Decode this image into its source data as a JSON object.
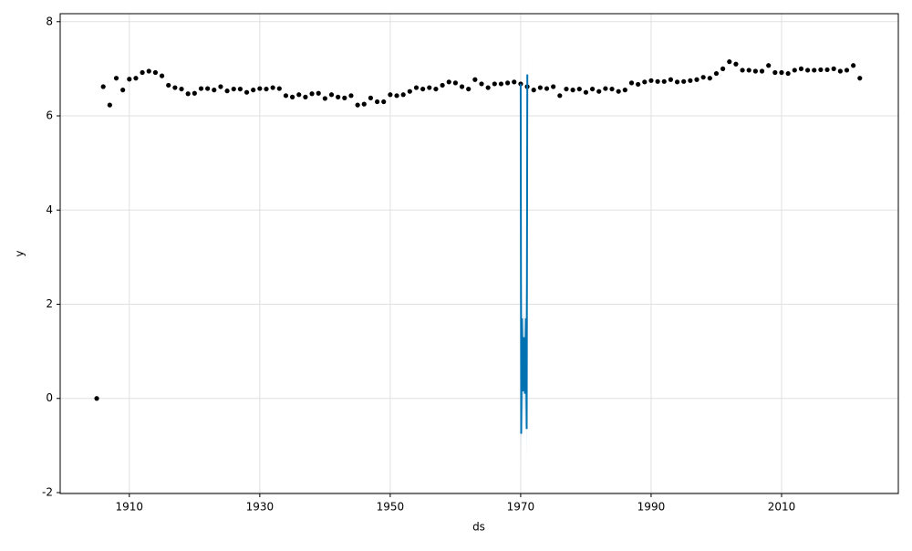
{
  "chart_data": {
    "type": "scatter",
    "x_label": "ds",
    "y_label": "y",
    "xlim": [
      1899.4,
      2027.9
    ],
    "ylim": [
      -2.02,
      8.17
    ],
    "xticks": [
      1910,
      1930,
      1950,
      1970,
      1990,
      2010
    ],
    "yticks": [
      -2,
      0,
      2,
      4,
      6,
      8
    ],
    "grid": true,
    "series": [
      {
        "type": "scatter",
        "color": "#000000",
        "x": [
          1905,
          1906,
          1907,
          1908,
          1909,
          1910,
          1911,
          1912,
          1913,
          1914,
          1915,
          1916,
          1917,
          1918,
          1919,
          1920,
          1921,
          1922,
          1923,
          1924,
          1925,
          1926,
          1927,
          1928,
          1929,
          1930,
          1931,
          1932,
          1933,
          1934,
          1935,
          1936,
          1937,
          1938,
          1939,
          1940,
          1941,
          1942,
          1943,
          1944,
          1945,
          1946,
          1947,
          1948,
          1949,
          1950,
          1951,
          1952,
          1953,
          1954,
          1955,
          1956,
          1957,
          1958,
          1959,
          1960,
          1961,
          1962,
          1963,
          1964,
          1965,
          1966,
          1967,
          1968,
          1969,
          1970,
          1971,
          1972,
          1973,
          1974,
          1975,
          1976,
          1977,
          1978,
          1979,
          1980,
          1981,
          1982,
          1983,
          1984,
          1985,
          1986,
          1987,
          1988,
          1989,
          1990,
          1991,
          1992,
          1993,
          1994,
          1995,
          1996,
          1997,
          1998,
          1999,
          2000,
          2001,
          2002,
          2003,
          2004,
          2005,
          2006,
          2007,
          2008,
          2009,
          2010,
          2011,
          2012,
          2013,
          2014,
          2015,
          2016,
          2017,
          2018,
          2019,
          2020,
          2021,
          2022
        ],
        "values": [
          0,
          6.62,
          6.23,
          6.8,
          6.55,
          6.78,
          6.8,
          6.92,
          6.95,
          6.92,
          6.85,
          6.65,
          6.6,
          6.57,
          6.47,
          6.48,
          6.58,
          6.58,
          6.55,
          6.62,
          6.53,
          6.57,
          6.57,
          6.5,
          6.55,
          6.58,
          6.57,
          6.6,
          6.58,
          6.43,
          6.4,
          6.45,
          6.4,
          6.47,
          6.48,
          6.37,
          6.45,
          6.4,
          6.38,
          6.43,
          6.23,
          6.25,
          6.38,
          6.3,
          6.3,
          6.45,
          6.43,
          6.45,
          6.52,
          6.6,
          6.57,
          6.6,
          6.57,
          6.65,
          6.72,
          6.7,
          6.62,
          6.57,
          6.77,
          6.68,
          6.6,
          6.68,
          6.68,
          6.7,
          6.72,
          6.68,
          6.62,
          6.55,
          6.6,
          6.58,
          6.62,
          6.43,
          6.57,
          6.55,
          6.57,
          6.5,
          6.57,
          6.52,
          6.58,
          6.57,
          6.52,
          6.55,
          6.7,
          6.67,
          6.72,
          6.75,
          6.73,
          6.73,
          6.77,
          6.72,
          6.73,
          6.75,
          6.77,
          6.82,
          6.8,
          6.9,
          7.0,
          7.15,
          7.1,
          6.97,
          6.97,
          6.95,
          6.95,
          7.07,
          6.92,
          6.92,
          6.9,
          6.97,
          7.0,
          6.97,
          6.97,
          6.98,
          6.98,
          7.0,
          6.95,
          6.97,
          7.07,
          6.8
        ]
      },
      {
        "type": "line",
        "color": "#0072b2",
        "x": [
          1970.0,
          1970.08,
          1970.2,
          1970.35,
          1970.5,
          1970.65,
          1970.8,
          1970.92,
          1971.02
        ],
        "values": [
          6.68,
          -0.75,
          1.7,
          0.15,
          1.3,
          0.1,
          1.7,
          -0.65,
          6.88
        ],
        "upper": [
          7.5,
          0.1,
          2.5,
          1.0,
          2.1,
          0.9,
          2.5,
          0.2,
          7.75
        ],
        "lower": [
          5.9,
          -1.55,
          0.9,
          -0.7,
          0.5,
          -0.7,
          0.9,
          -1.45,
          6.05
        ]
      }
    ]
  }
}
